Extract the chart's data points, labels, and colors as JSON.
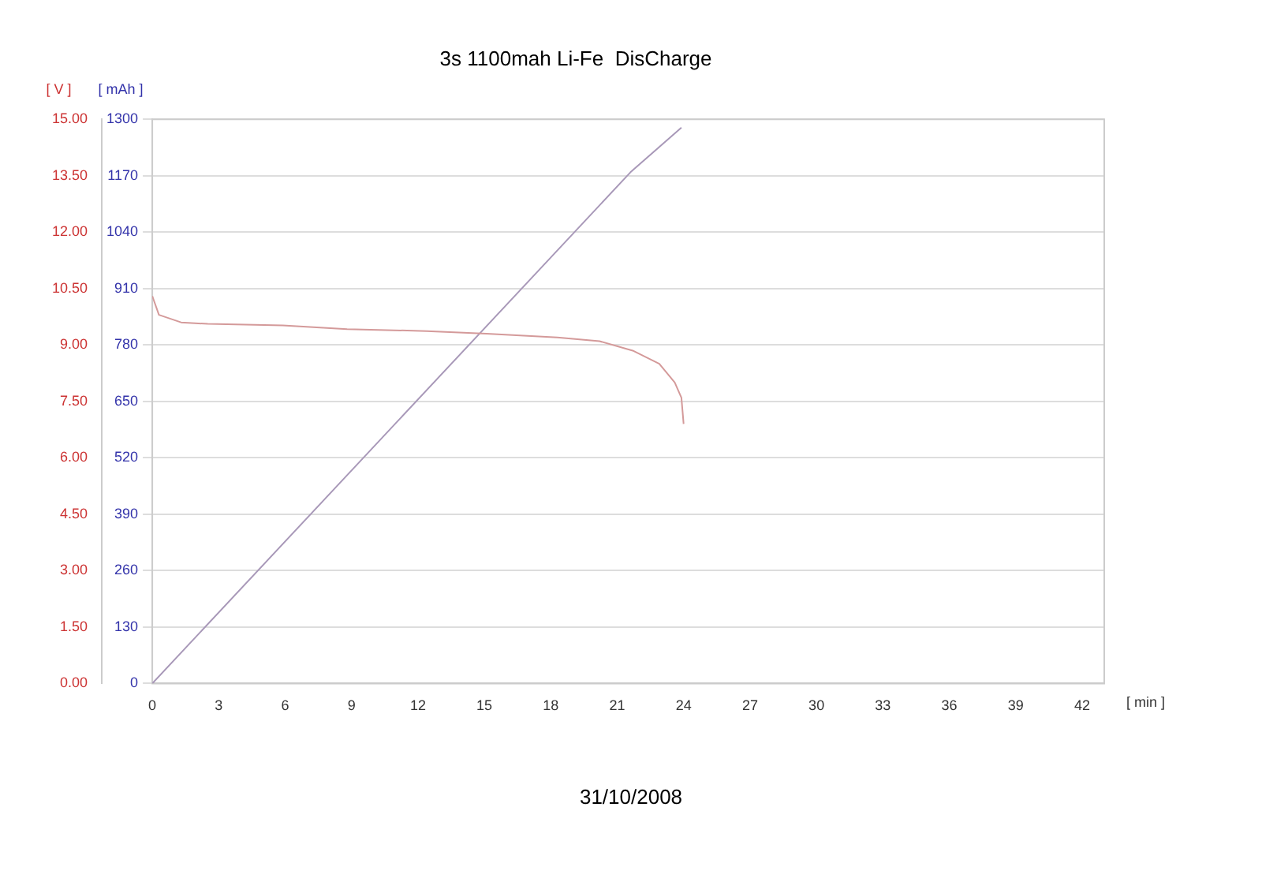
{
  "chart_data": {
    "type": "line",
    "title": "3s 1100mah Li-Fe  DisCharge",
    "xlabel": "[ min ]",
    "ylabel": "[ V ]",
    "y2label": "[ mAh ]",
    "annotations": [
      "31/10/2008"
    ],
    "xlim": [
      0,
      43
    ],
    "xticks": [
      0,
      3,
      6,
      9,
      12,
      15,
      18,
      21,
      24,
      27,
      30,
      33,
      36,
      39,
      42
    ],
    "ylim": [
      0,
      15
    ],
    "yticks": [
      {
        "value": 0,
        "label": "0.00"
      },
      {
        "value": 1.5,
        "label": "1.50"
      },
      {
        "value": 3,
        "label": "3.00"
      },
      {
        "value": 4.5,
        "label": "4.50"
      },
      {
        "value": 6,
        "label": "6.00"
      },
      {
        "value": 7.5,
        "label": "7.50"
      },
      {
        "value": 9,
        "label": "9.00"
      },
      {
        "value": 10.5,
        "label": "10.50"
      },
      {
        "value": 12,
        "label": "12.00"
      },
      {
        "value": 13.5,
        "label": "13.50"
      },
      {
        "value": 15,
        "label": "15.00"
      }
    ],
    "y2lim": [
      0,
      1300
    ],
    "y2ticks": [
      0,
      130,
      260,
      390,
      520,
      650,
      780,
      910,
      1040,
      1170,
      1300
    ],
    "grid": "y",
    "marker": "none",
    "line_style": "solid",
    "series": [
      {
        "color": "#d49a9a",
        "x": [
          0,
          0.3,
          1.3,
          2.5,
          5.9,
          8.8,
          12.4,
          15.1,
          18.3,
          20.2,
          21.7,
          22.9,
          23.6,
          23.9,
          24.0
        ],
        "values": [
          10.3,
          9.8,
          9.6,
          9.56,
          9.52,
          9.42,
          9.37,
          9.3,
          9.2,
          9.1,
          8.85,
          8.5,
          8.0,
          7.6,
          6.9
        ]
      },
      {
        "color": "#a898b8",
        "axis": "y2",
        "x": [
          0,
          21.6,
          23.9
        ],
        "values": [
          0,
          1178,
          1281
        ]
      }
    ]
  }
}
